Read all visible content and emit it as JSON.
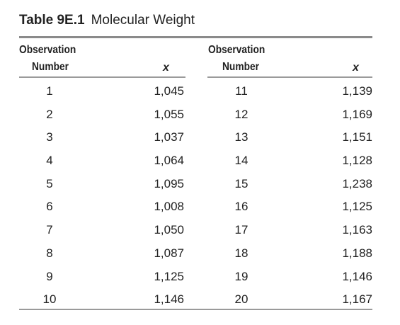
{
  "table": {
    "number": "Table 9E.1",
    "title": "Molecular Weight",
    "headers": {
      "obs_line1": "Observation",
      "obs_line2": "Number",
      "x": "x"
    },
    "left_rows": [
      {
        "obs": "1",
        "x": "1,045"
      },
      {
        "obs": "2",
        "x": "1,055"
      },
      {
        "obs": "3",
        "x": "1,037"
      },
      {
        "obs": "4",
        "x": "1,064"
      },
      {
        "obs": "5",
        "x": "1,095"
      },
      {
        "obs": "6",
        "x": "1,008"
      },
      {
        "obs": "7",
        "x": "1,050"
      },
      {
        "obs": "8",
        "x": "1,087"
      },
      {
        "obs": "9",
        "x": "1,125"
      },
      {
        "obs": "10",
        "x": "1,146"
      }
    ],
    "right_rows": [
      {
        "obs": "11",
        "x": "1,139"
      },
      {
        "obs": "12",
        "x": "1,169"
      },
      {
        "obs": "13",
        "x": "1,151"
      },
      {
        "obs": "14",
        "x": "1,128"
      },
      {
        "obs": "15",
        "x": "1,238"
      },
      {
        "obs": "16",
        "x": "1,125"
      },
      {
        "obs": "17",
        "x": "1,163"
      },
      {
        "obs": "18",
        "x": "1,188"
      },
      {
        "obs": "19",
        "x": "1,146"
      },
      {
        "obs": "20",
        "x": "1,167"
      }
    ]
  }
}
